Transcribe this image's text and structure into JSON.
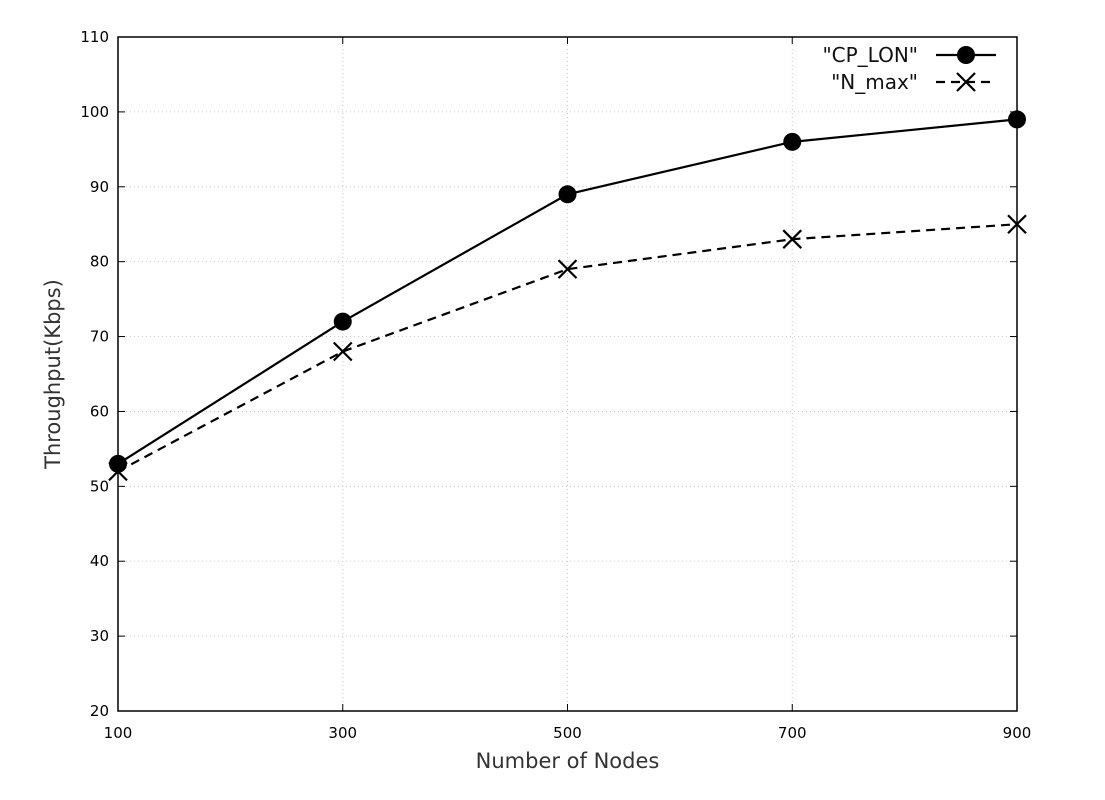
{
  "chart_data": {
    "type": "line",
    "title": "",
    "xlabel": "Number of Nodes",
    "ylabel": "Throughput(Kbps)",
    "x": [
      100,
      300,
      500,
      700,
      900
    ],
    "xlim": [
      100,
      900
    ],
    "ylim": [
      20,
      110
    ],
    "x_ticks": [
      100,
      300,
      500,
      700,
      900
    ],
    "y_ticks": [
      20,
      30,
      40,
      50,
      60,
      70,
      80,
      90,
      100,
      110
    ],
    "grid": true,
    "legend_position": "top-right",
    "series": [
      {
        "name": "\"CP_LON\"",
        "values": [
          53,
          72,
          89,
          96,
          99
        ],
        "line_style": "solid",
        "marker": "filled-circle",
        "color": "#000000"
      },
      {
        "name": "\"N_max\"",
        "values": [
          52,
          68,
          79,
          83,
          85
        ],
        "line_style": "dashed",
        "marker": "cross",
        "color": "#000000"
      }
    ]
  }
}
